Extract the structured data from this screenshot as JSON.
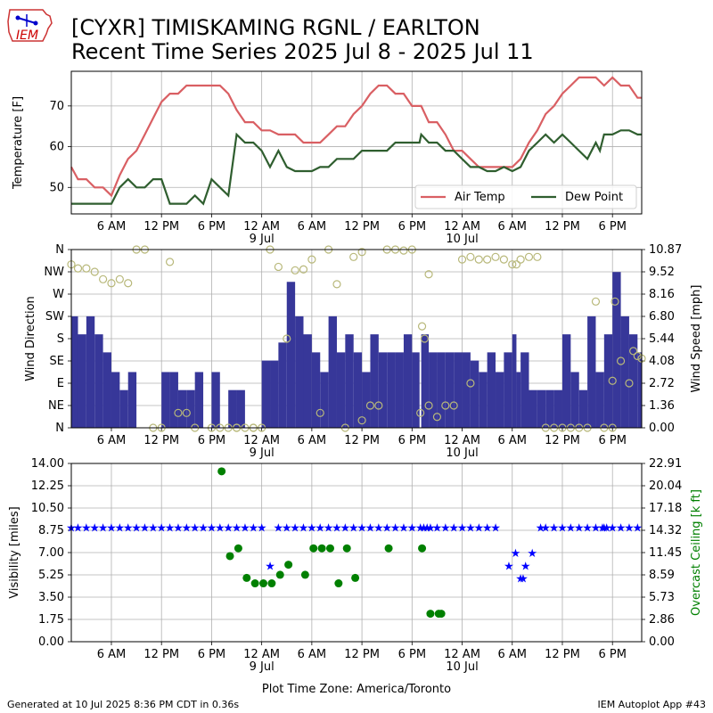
{
  "header": {
    "title_line1": "[CYXR] TIMISKAMING RGNL / EARLTON",
    "title_line2": "Recent Time Series 2025 Jul 8 - 2025 Jul 11",
    "logo_text": "IEM"
  },
  "footer": {
    "generated": "Generated at 10 Jul 2025 8:36 PM CDT in 0.36s",
    "app": "IEM Autoplot App #43"
  },
  "time_axis": {
    "ticks": [
      "6 AM",
      "12 PM",
      "6 PM",
      "12 AM",
      "6 AM",
      "12 PM",
      "6 PM",
      "12 AM",
      "6 AM",
      "12 PM",
      "6 PM"
    ],
    "tick_hours": [
      6,
      12,
      18,
      24,
      30,
      36,
      42,
      48,
      54,
      60,
      66
    ],
    "day_labels": [
      "9 Jul",
      "10 Jul"
    ],
    "day_label_hours": [
      24,
      48
    ],
    "range_hours": [
      1.2,
      69.5
    ],
    "xlabel": "Plot Time Zone: America/Toronto"
  },
  "colors": {
    "air_temp": "#d95f63",
    "dew_point": "#2f5e2f",
    "wind_bar": "#373799",
    "wind_dir": "#b8b87a",
    "visibility": "#0000ff",
    "ceiling": "#008000",
    "grid": "#b0b0b0"
  },
  "chart_data": [
    {
      "type": "line",
      "name": "temperature",
      "ylabel": "Temperature [F]",
      "ylim": [
        43.5,
        78.5
      ],
      "yticks": [
        50,
        60,
        70
      ],
      "grid": true,
      "legend": "bottom-right",
      "series": [
        {
          "name": "Air Temp",
          "x": [
            1.2,
            2,
            3,
            4,
            5,
            6,
            7,
            8,
            9,
            10,
            11,
            12,
            13,
            14,
            15,
            16,
            17,
            18,
            19,
            20,
            21,
            22,
            23,
            24,
            25,
            26,
            27,
            28,
            29,
            30,
            31,
            32,
            33,
            34,
            35,
            36,
            37,
            38,
            39,
            40,
            41,
            42,
            42.9,
            43.1,
            44,
            45,
            46,
            47,
            48,
            49,
            50,
            51,
            52,
            53,
            54,
            55,
            56,
            57,
            58,
            59,
            60,
            61,
            62,
            63,
            64,
            65,
            66,
            67,
            68,
            69,
            69.5
          ],
          "y": [
            55,
            52,
            52,
            50,
            50,
            48,
            53,
            57,
            59,
            63,
            67,
            71,
            73,
            73,
            75,
            75,
            75,
            75,
            75,
            73,
            69,
            66,
            66,
            64,
            64,
            63,
            63,
            63,
            61,
            61,
            61,
            63,
            65,
            65,
            68,
            70,
            73,
            75,
            75,
            73,
            73,
            70,
            70,
            70,
            66,
            66,
            63,
            59,
            59,
            57,
            55,
            55,
            55,
            55,
            55,
            57,
            61,
            64,
            68,
            70,
            73,
            75,
            77,
            77,
            77,
            75,
            77,
            75,
            75,
            72,
            72
          ]
        },
        {
          "name": "Dew Point",
          "x": [
            1.2,
            2,
            3,
            4,
            5,
            6,
            7,
            8,
            9,
            10,
            11,
            12,
            13,
            14,
            15,
            16,
            17,
            18,
            19,
            20,
            21,
            22,
            23,
            24,
            25,
            26,
            27,
            28,
            29,
            30,
            31,
            32,
            33,
            34,
            35,
            36,
            37,
            38,
            39,
            40,
            41,
            42,
            42.9,
            43.1,
            44,
            45,
            46,
            47,
            48,
            49,
            50,
            51,
            52,
            53,
            54,
            55,
            56,
            57,
            58,
            59,
            60,
            61,
            62,
            63,
            64,
            64.5,
            65,
            66,
            67,
            68,
            69,
            69.5
          ],
          "y": [
            46,
            46,
            46,
            46,
            46,
            46,
            50,
            52,
            50,
            50,
            52,
            52,
            46,
            46,
            46,
            48,
            46,
            52,
            50,
            48,
            63,
            61,
            61,
            59,
            55,
            59,
            55,
            54,
            54,
            54,
            55,
            55,
            57,
            57,
            57,
            59,
            59,
            59,
            59,
            61,
            61,
            61,
            61,
            63,
            61,
            61,
            59,
            59,
            57,
            55,
            55,
            54,
            54,
            55,
            54,
            55,
            59,
            61,
            63,
            61,
            63,
            61,
            59,
            57,
            61,
            59,
            63,
            63,
            64,
            64,
            63,
            63
          ]
        }
      ]
    },
    {
      "type": "bar",
      "name": "wind",
      "ylabel": "Wind Direction",
      "y2label": "Wind Speed [mph]",
      "yticks_dir": [
        "N",
        "NE",
        "E",
        "SE",
        "S",
        "SW",
        "W",
        "NW",
        "N"
      ],
      "yticks_speed": [
        "0.00",
        "1.36",
        "2.72",
        "4.08",
        "5.44",
        "6.80",
        "8.16",
        "9.52",
        "10.87"
      ],
      "speed_max": 10.87,
      "grid": true,
      "wind_speed_mph": {
        "x": [
          1.2,
          2,
          3,
          4,
          5,
          6,
          7,
          8,
          9,
          10,
          11,
          12,
          13,
          14,
          15,
          16,
          17,
          18,
          19,
          20,
          21,
          22,
          23,
          24,
          25,
          26,
          27,
          28,
          29,
          30,
          31,
          32,
          33,
          34,
          35,
          36,
          37,
          38,
          39,
          40,
          41,
          42,
          42.9,
          43.1,
          44,
          45,
          46,
          47,
          48,
          49,
          50,
          51,
          52,
          53,
          54,
          54.5,
          55,
          56,
          57,
          58,
          59,
          60,
          61,
          62,
          63,
          64,
          65,
          66,
          67,
          68,
          69
        ],
        "y": [
          6.8,
          5.7,
          6.8,
          5.7,
          4.6,
          3.4,
          2.3,
          3.4,
          0,
          0,
          0,
          3.4,
          3.4,
          2.3,
          2.3,
          3.4,
          0,
          3.4,
          0,
          2.3,
          2.3,
          0,
          0,
          4.1,
          4.1,
          5.2,
          8.9,
          6.8,
          5.7,
          4.6,
          3.4,
          6.8,
          4.6,
          5.7,
          4.6,
          3.4,
          5.7,
          4.6,
          4.6,
          4.6,
          5.7,
          4.6,
          0,
          5.7,
          4.6,
          4.6,
          4.6,
          4.6,
          4.6,
          4.1,
          3.4,
          4.6,
          3.4,
          4.6,
          5.7,
          3.4,
          4.6,
          2.3,
          2.3,
          2.3,
          2.3,
          5.7,
          3.4,
          2.3,
          6.8,
          3.4,
          5.7,
          9.5,
          6.8,
          5.7,
          4.6
        ]
      },
      "wind_dir_deg": {
        "x": [
          1.2,
          2,
          3,
          4,
          5,
          6,
          7,
          8,
          9,
          10,
          11,
          12,
          13,
          14,
          15,
          16,
          18,
          19,
          20,
          21,
          22,
          23,
          24,
          25,
          26,
          27,
          28,
          29,
          30,
          31,
          32,
          33,
          34,
          35,
          36,
          37,
          38,
          39,
          40,
          41,
          42,
          43,
          44,
          45,
          46,
          47,
          48,
          49,
          50,
          51,
          52,
          53,
          54,
          54.5,
          55,
          56,
          57,
          58,
          59,
          60,
          61,
          62,
          63,
          64,
          65,
          66,
          67,
          68,
          69
        ],
        "y": [
          330,
          322,
          322,
          315,
          300,
          292,
          300,
          292,
          360,
          360,
          0,
          0,
          335,
          30,
          30,
          0,
          0,
          0,
          0,
          0,
          0,
          0,
          0,
          360,
          325,
          180,
          318,
          320,
          340,
          30,
          360,
          290,
          0,
          345,
          355,
          45,
          45,
          360,
          360,
          358,
          360,
          30,
          310,
          22,
          45,
          45,
          340,
          345,
          340,
          340,
          345,
          340,
          330,
          330,
          340,
          345,
          345,
          0,
          0,
          0,
          0,
          0,
          0,
          255,
          0,
          0,
          135,
          90,
          145
        ]
      },
      "wind_dir_extra": {
        "x": [
          21,
          23,
          36,
          43.2,
          43.5,
          44,
          49,
          66,
          66.3,
          68.5,
          69.5
        ],
        "y": [
          0,
          0,
          15,
          205,
          180,
          45,
          90,
          95,
          255,
          155,
          140
        ]
      }
    },
    {
      "type": "scatter",
      "name": "visibility_ceiling",
      "ylabel": "Visibility [miles]",
      "y2label": "Overcast Ceiling [k ft]",
      "yticks_vis": [
        "0.00",
        "1.75",
        "3.50",
        "5.25",
        "7.00",
        "8.75",
        "10.50",
        "12.25",
        "14.00"
      ],
      "yticks_ceil": [
        "0.00",
        "2.86",
        "5.73",
        "8.59",
        "11.45",
        "14.32",
        "17.18",
        "20.04",
        "22.91"
      ],
      "vis_max": 14.0,
      "grid": true,
      "visibility_miles": {
        "x": [
          1.2,
          2,
          3,
          4,
          5,
          6,
          7,
          8,
          9,
          10,
          11,
          12,
          13,
          14,
          15,
          16,
          17,
          18,
          19,
          20,
          21,
          22,
          23,
          24,
          25,
          26,
          27,
          28,
          29,
          30,
          31,
          32,
          33,
          34,
          35,
          36,
          37,
          38,
          39,
          40,
          41,
          42,
          43,
          43.4,
          43.8,
          44.2,
          45,
          46,
          47,
          48,
          49,
          50,
          51,
          52,
          53.6,
          54.4,
          55,
          55.3,
          55.6,
          56.4,
          57.4,
          58,
          59,
          60,
          61,
          62,
          63,
          64,
          64.8,
          65,
          65.3,
          66,
          67,
          68,
          69
        ],
        "y": [
          9,
          9,
          9,
          9,
          9,
          9,
          9,
          9,
          9,
          9,
          9,
          9,
          9,
          9,
          9,
          9,
          9,
          9,
          9,
          9,
          9,
          9,
          9,
          9,
          6,
          9,
          9,
          9,
          9,
          9,
          9,
          9,
          9,
          9,
          9,
          9,
          9,
          9,
          9,
          9,
          9,
          9,
          9,
          9,
          9,
          9,
          9,
          9,
          9,
          9,
          9,
          9,
          9,
          9,
          6,
          7,
          5,
          5,
          6,
          7,
          9,
          9,
          9,
          9,
          9,
          9,
          9,
          9,
          9,
          9,
          9,
          9,
          9,
          9,
          9
        ]
      },
      "ceiling_kft": {
        "x": [
          19.2,
          20.2,
          21.2,
          22.2,
          23.2,
          24.2,
          25.2,
          26.2,
          27.2,
          29.2,
          30.2,
          31.2,
          32.2,
          33.2,
          34.2,
          35.2,
          39.2,
          43.2,
          44.2,
          45.2,
          45.5
        ],
        "y": [
          21.9,
          11.0,
          12.0,
          8.2,
          7.5,
          7.5,
          7.5,
          8.6,
          9.9,
          8.6,
          12.0,
          12.0,
          12.0,
          7.5,
          12.0,
          8.2,
          12.0,
          12.0,
          3.6,
          3.6,
          3.6
        ]
      }
    }
  ]
}
